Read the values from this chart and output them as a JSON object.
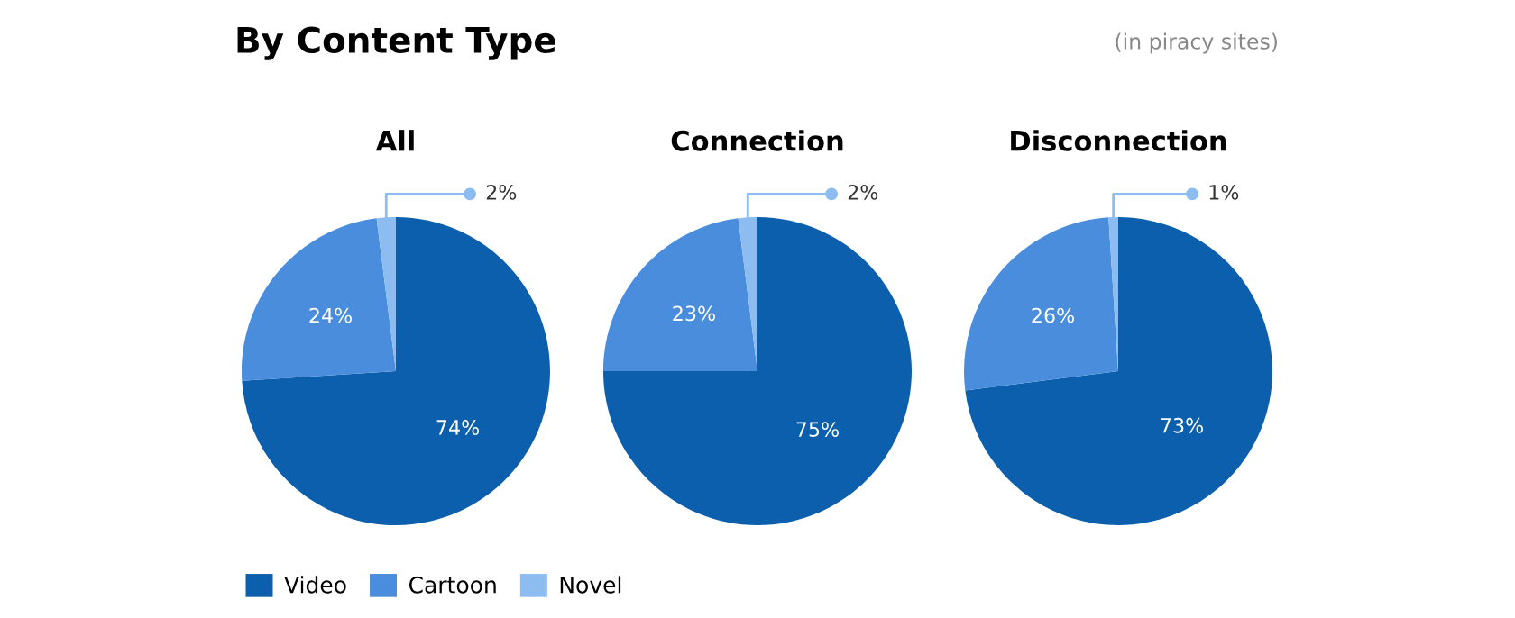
{
  "chart_data": [
    {
      "type": "pie",
      "title": "All",
      "categories": [
        "Video",
        "Cartoon",
        "Novel"
      ],
      "values": [
        74,
        24,
        2
      ],
      "value_labels": [
        "74%",
        "24%",
        "2%"
      ],
      "colors": [
        "#0b5fad",
        "#4a8ddc",
        "#8dbcf0"
      ],
      "legend": "bottom",
      "annotations": [
        "By Content Type",
        "(in piracy sites)"
      ]
    },
    {
      "type": "pie",
      "title": "Connection",
      "categories": [
        null,
        null,
        null
      ],
      "values": [
        75,
        23,
        2
      ],
      "value_labels": [
        "75%",
        "23%",
        "2%"
      ],
      "colors": [
        "#0b5fad",
        "#4a8ddc",
        "#8dbcf0"
      ]
    },
    {
      "type": "pie",
      "title": "Disconnection",
      "categories": [
        null,
        null,
        null
      ],
      "values": [
        73,
        26,
        1
      ],
      "value_labels": [
        "73%",
        "26%",
        "1%"
      ],
      "colors": [
        "#0b5fad",
        "#4a8ddc",
        "#8dbcf0"
      ]
    }
  ]
}
